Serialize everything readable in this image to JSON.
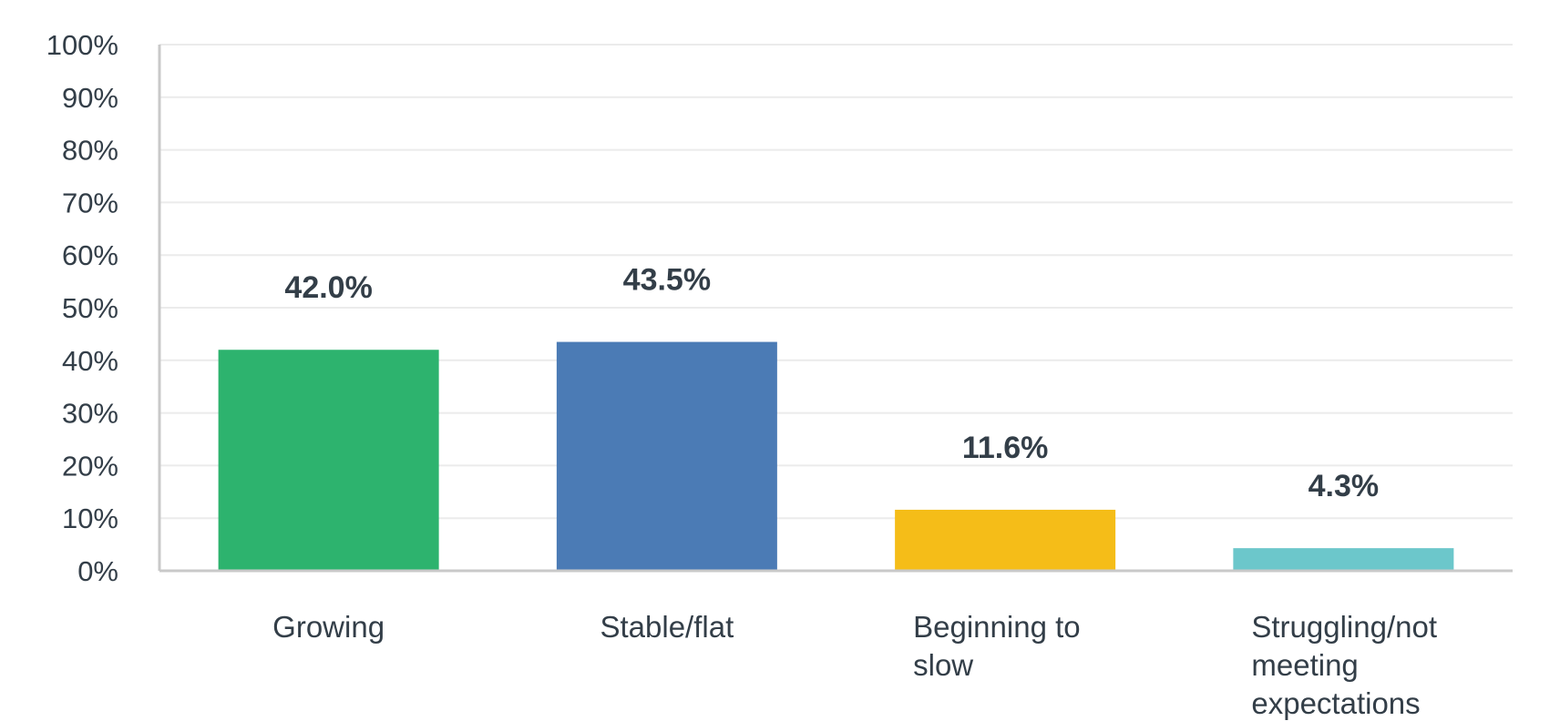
{
  "chart_data": {
    "type": "bar",
    "title": "",
    "xlabel": "",
    "ylabel": "",
    "categories": [
      [
        "Growing"
      ],
      [
        "Stable/flat"
      ],
      [
        "Beginning to",
        "slow"
      ],
      [
        "Struggling/not",
        "meeting",
        "expectations"
      ]
    ],
    "values": [
      42.0,
      43.5,
      11.6,
      4.3
    ],
    "data_labels": [
      "42.0%",
      "43.5%",
      "11.6%",
      "4.3%"
    ],
    "bar_colors": [
      "#2db36e",
      "#4b7bb5",
      "#f5bd18",
      "#6cc7cb"
    ],
    "ylim": [
      0,
      100
    ],
    "yticks": [
      0,
      10,
      20,
      30,
      40,
      50,
      60,
      70,
      80,
      90,
      100
    ],
    "ytick_labels": [
      "0%",
      "10%",
      "20%",
      "30%",
      "40%",
      "50%",
      "60%",
      "70%",
      "80%",
      "90%",
      "100%"
    ],
    "grid": true,
    "legend": "none"
  }
}
